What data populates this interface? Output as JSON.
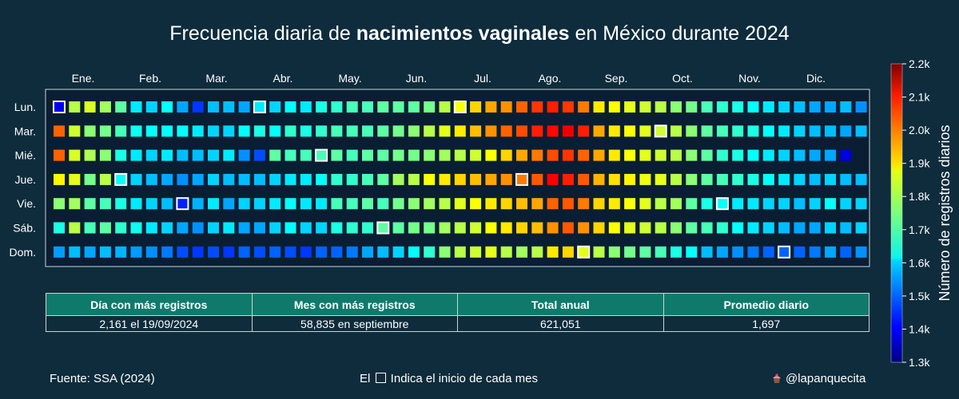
{
  "title": {
    "prefix": "Frecuencia diaria de ",
    "bold": "nacimientos vaginales",
    "suffix": " en México durante 2024"
  },
  "chart_data": {
    "type": "heatmap",
    "year": 2024,
    "months": [
      "Ene.",
      "Feb.",
      "Mar.",
      "Abr.",
      "May.",
      "Jun.",
      "Jul.",
      "Ago.",
      "Sep.",
      "Oct.",
      "Nov.",
      "Dic."
    ],
    "weekdays": [
      "Lun.",
      "Mar.",
      "Mié.",
      "Jue.",
      "Vie.",
      "Sáb.",
      "Dom."
    ],
    "colorbar": {
      "label": "Número de registros diarios",
      "min": 1300,
      "max": 2200,
      "ticks": [
        1300,
        1400,
        1500,
        1600,
        1700,
        1800,
        1900,
        2000,
        2100,
        2200
      ],
      "tick_labels": [
        "1.3k",
        "1.4k",
        "1.5k",
        "1.6k",
        "1.7k",
        "1.8k",
        "1.9k",
        "2.0k",
        "2.1k",
        "2.2k"
      ],
      "colorscale": "jet"
    },
    "month_start_outline": true,
    "weekly_values": [
      [
        1400,
        2000,
        2000,
        1870,
        1760,
        1660,
        1550
      ],
      [
        1800,
        1820,
        1830,
        1840,
        1780,
        1800,
        1580
      ],
      [
        1830,
        1760,
        1790,
        1740,
        1720,
        1700,
        1560
      ],
      [
        1780,
        1740,
        1760,
        1800,
        1700,
        1720,
        1580
      ],
      [
        1720,
        1700,
        1660,
        1640,
        1660,
        1680,
        1570
      ],
      [
        1620,
        1650,
        1620,
        1600,
        1620,
        1650,
        1550
      ],
      [
        1600,
        1640,
        1600,
        1580,
        1600,
        1620,
        1540
      ],
      [
        1640,
        1640,
        1620,
        1560,
        1580,
        1600,
        1520
      ],
      [
        1560,
        1640,
        1580,
        1540,
        1440,
        1560,
        1480
      ],
      [
        1460,
        1620,
        1580,
        1560,
        1570,
        1540,
        1460
      ],
      [
        1580,
        1600,
        1600,
        1600,
        1620,
        1600,
        1480
      ],
      [
        1580,
        1600,
        1620,
        1580,
        1560,
        1620,
        1460
      ],
      [
        1560,
        1640,
        1540,
        1580,
        1600,
        1560,
        1500
      ],
      [
        1620,
        1660,
        1480,
        1580,
        1600,
        1560,
        1480
      ],
      [
        1600,
        1640,
        1720,
        1600,
        1620,
        1600,
        1500
      ],
      [
        1640,
        1680,
        1700,
        1620,
        1640,
        1640,
        1480
      ],
      [
        1620,
        1660,
        1700,
        1620,
        1620,
        1600,
        1460
      ],
      [
        1660,
        1680,
        1700,
        1640,
        1620,
        1600,
        1500
      ],
      [
        1680,
        1700,
        1720,
        1680,
        1700,
        1660,
        1500
      ],
      [
        1700,
        1700,
        1700,
        1680,
        1700,
        1680,
        1520
      ],
      [
        1700,
        1700,
        1720,
        1700,
        1720,
        1680,
        1560
      ],
      [
        1720,
        1720,
        1720,
        1720,
        1700,
        1720,
        1580
      ],
      [
        1720,
        1740,
        1740,
        1780,
        1740,
        1720,
        1600
      ],
      [
        1720,
        1760,
        1740,
        1800,
        1760,
        1740,
        1640
      ],
      [
        1740,
        1800,
        1760,
        1860,
        1780,
        1740,
        1680
      ],
      [
        1800,
        1840,
        1780,
        1880,
        1800,
        1780,
        1760
      ],
      [
        1860,
        1880,
        1800,
        1900,
        1840,
        1800,
        1800
      ],
      [
        1900,
        1920,
        1820,
        1920,
        1860,
        1820,
        1820
      ],
      [
        1940,
        1960,
        1860,
        1940,
        1880,
        1860,
        1840
      ],
      [
        1960,
        2000,
        1900,
        1960,
        1900,
        1880,
        1800
      ],
      [
        2000,
        2020,
        1940,
        1980,
        1920,
        1900,
        1780
      ],
      [
        2040,
        2060,
        1980,
        2010,
        1940,
        1920,
        1800
      ],
      [
        2060,
        2080,
        2020,
        2090,
        2000,
        1960,
        1880
      ],
      [
        2040,
        2100,
        2040,
        2060,
        2010,
        2010,
        1900
      ],
      [
        1980,
        2060,
        2000,
        2010,
        1980,
        1960,
        1840
      ],
      [
        1880,
        1940,
        1940,
        1930,
        1900,
        1900,
        1800
      ],
      [
        1860,
        1880,
        1880,
        1890,
        1880,
        1860,
        1760
      ],
      [
        1840,
        1860,
        1860,
        1870,
        1860,
        1840,
        1740
      ],
      [
        1820,
        1840,
        1840,
        1850,
        1840,
        1820,
        1720
      ],
      [
        1800,
        1820,
        1820,
        1840,
        1800,
        1800,
        1700
      ],
      [
        1760,
        1800,
        1800,
        1800,
        1780,
        1760,
        1660
      ],
      [
        1740,
        1760,
        1760,
        1760,
        1720,
        1720,
        1640
      ],
      [
        1700,
        1720,
        1720,
        1720,
        1660,
        1700,
        1580
      ],
      [
        1680,
        1700,
        1680,
        1700,
        1640,
        1680,
        1560
      ],
      [
        1660,
        1680,
        1660,
        1680,
        1620,
        1640,
        1540
      ],
      [
        1640,
        1660,
        1640,
        1660,
        1620,
        1620,
        1520
      ],
      [
        1620,
        1640,
        1620,
        1640,
        1600,
        1600,
        1500
      ],
      [
        1600,
        1620,
        1600,
        1620,
        1600,
        1580,
        1500
      ],
      [
        1580,
        1600,
        1580,
        1600,
        1580,
        1560,
        1500
      ],
      [
        1560,
        1580,
        1560,
        1580,
        1600,
        1560,
        1520
      ],
      [
        1560,
        1580,
        1560,
        1600,
        1640,
        1600,
        1560
      ],
      [
        1580,
        1560,
        1380,
        1580,
        1600,
        1580,
        1500
      ],
      [
        1540,
        1580,
        null,
        1580,
        1600,
        1600,
        1540
      ]
    ],
    "first_week_start_row": 0
  },
  "stats": {
    "headers": [
      "Día con más registros",
      "Mes con más registros",
      "Total anual",
      "Promedio diario"
    ],
    "values": [
      "2,161 el 19/09/2024",
      "58,835 en septiembre",
      "621,051",
      "1,697"
    ]
  },
  "footer": {
    "source": "Fuente: SSA (2024)",
    "note_prefix": "El ",
    "note_suffix": " Indica el inicio de cada mes",
    "handle": "@lapanquecita"
  },
  "colors": {
    "background": "#0e2c3c",
    "panel": "#0a1e33",
    "header_fill": "#0f7a6c",
    "border": "#c8d4d8"
  }
}
